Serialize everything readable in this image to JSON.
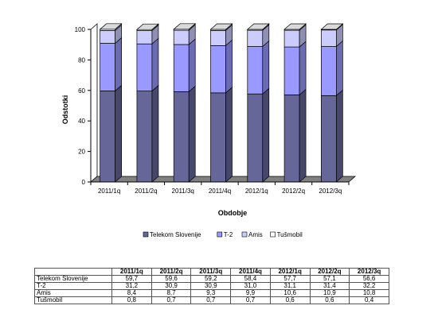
{
  "chart_data": {
    "type": "bar",
    "stacked": true,
    "categories": [
      "2011/1q",
      "2011/2q",
      "2011/3q",
      "2011/4q",
      "2012/1q",
      "2012/2q",
      "2012/3q"
    ],
    "series": [
      {
        "name": "Telekom Slovenije",
        "color": "#666699",
        "values": [
          59.7,
          59.6,
          59.2,
          58.4,
          57.7,
          57.1,
          56.6
        ]
      },
      {
        "name": "T-2",
        "color": "#9999FF",
        "values": [
          31.2,
          30.9,
          30.9,
          31.0,
          31.1,
          31.4,
          32.2
        ]
      },
      {
        "name": "Amis",
        "color": "#CCCCFF",
        "values": [
          8.4,
          8.7,
          9.3,
          9.9,
          10.6,
          10.9,
          10.8
        ]
      },
      {
        "name": "Tušmobil",
        "color": "#FFFFFF",
        "values": [
          0.8,
          0.7,
          0.7,
          0.7,
          0.6,
          0.6,
          0.4
        ]
      }
    ],
    "xlabel": "Obdobje",
    "ylabel": "Odstotki",
    "ylim": [
      0,
      100
    ],
    "yticks": [
      0,
      20,
      40,
      60,
      80,
      100
    ],
    "grid": false,
    "legend": "bottom"
  },
  "table": {
    "headers": [
      "2011/1q",
      "2011/2q",
      "2011/3q",
      "2011/4q",
      "2012/1q",
      "2012/2q",
      "2012/3q"
    ],
    "rows": [
      {
        "name": "Telekom Slovenije",
        "values": [
          "59,7",
          "59,6",
          "59,2",
          "58,4",
          "57,7",
          "57,1",
          "56,6"
        ]
      },
      {
        "name": "T-2",
        "values": [
          "31,2",
          "30,9",
          "30,9",
          "31,0",
          "31,1",
          "31,4",
          "32,2"
        ]
      },
      {
        "name": "Amis",
        "values": [
          "8,4",
          "8,7",
          "9,3",
          "9,9",
          "10,6",
          "10,9",
          "10,8"
        ]
      },
      {
        "name": "Tušmobil",
        "values": [
          "0,8",
          "0,7",
          "0,7",
          "0,7",
          "0,6",
          "0,6",
          "0,4"
        ]
      }
    ]
  }
}
